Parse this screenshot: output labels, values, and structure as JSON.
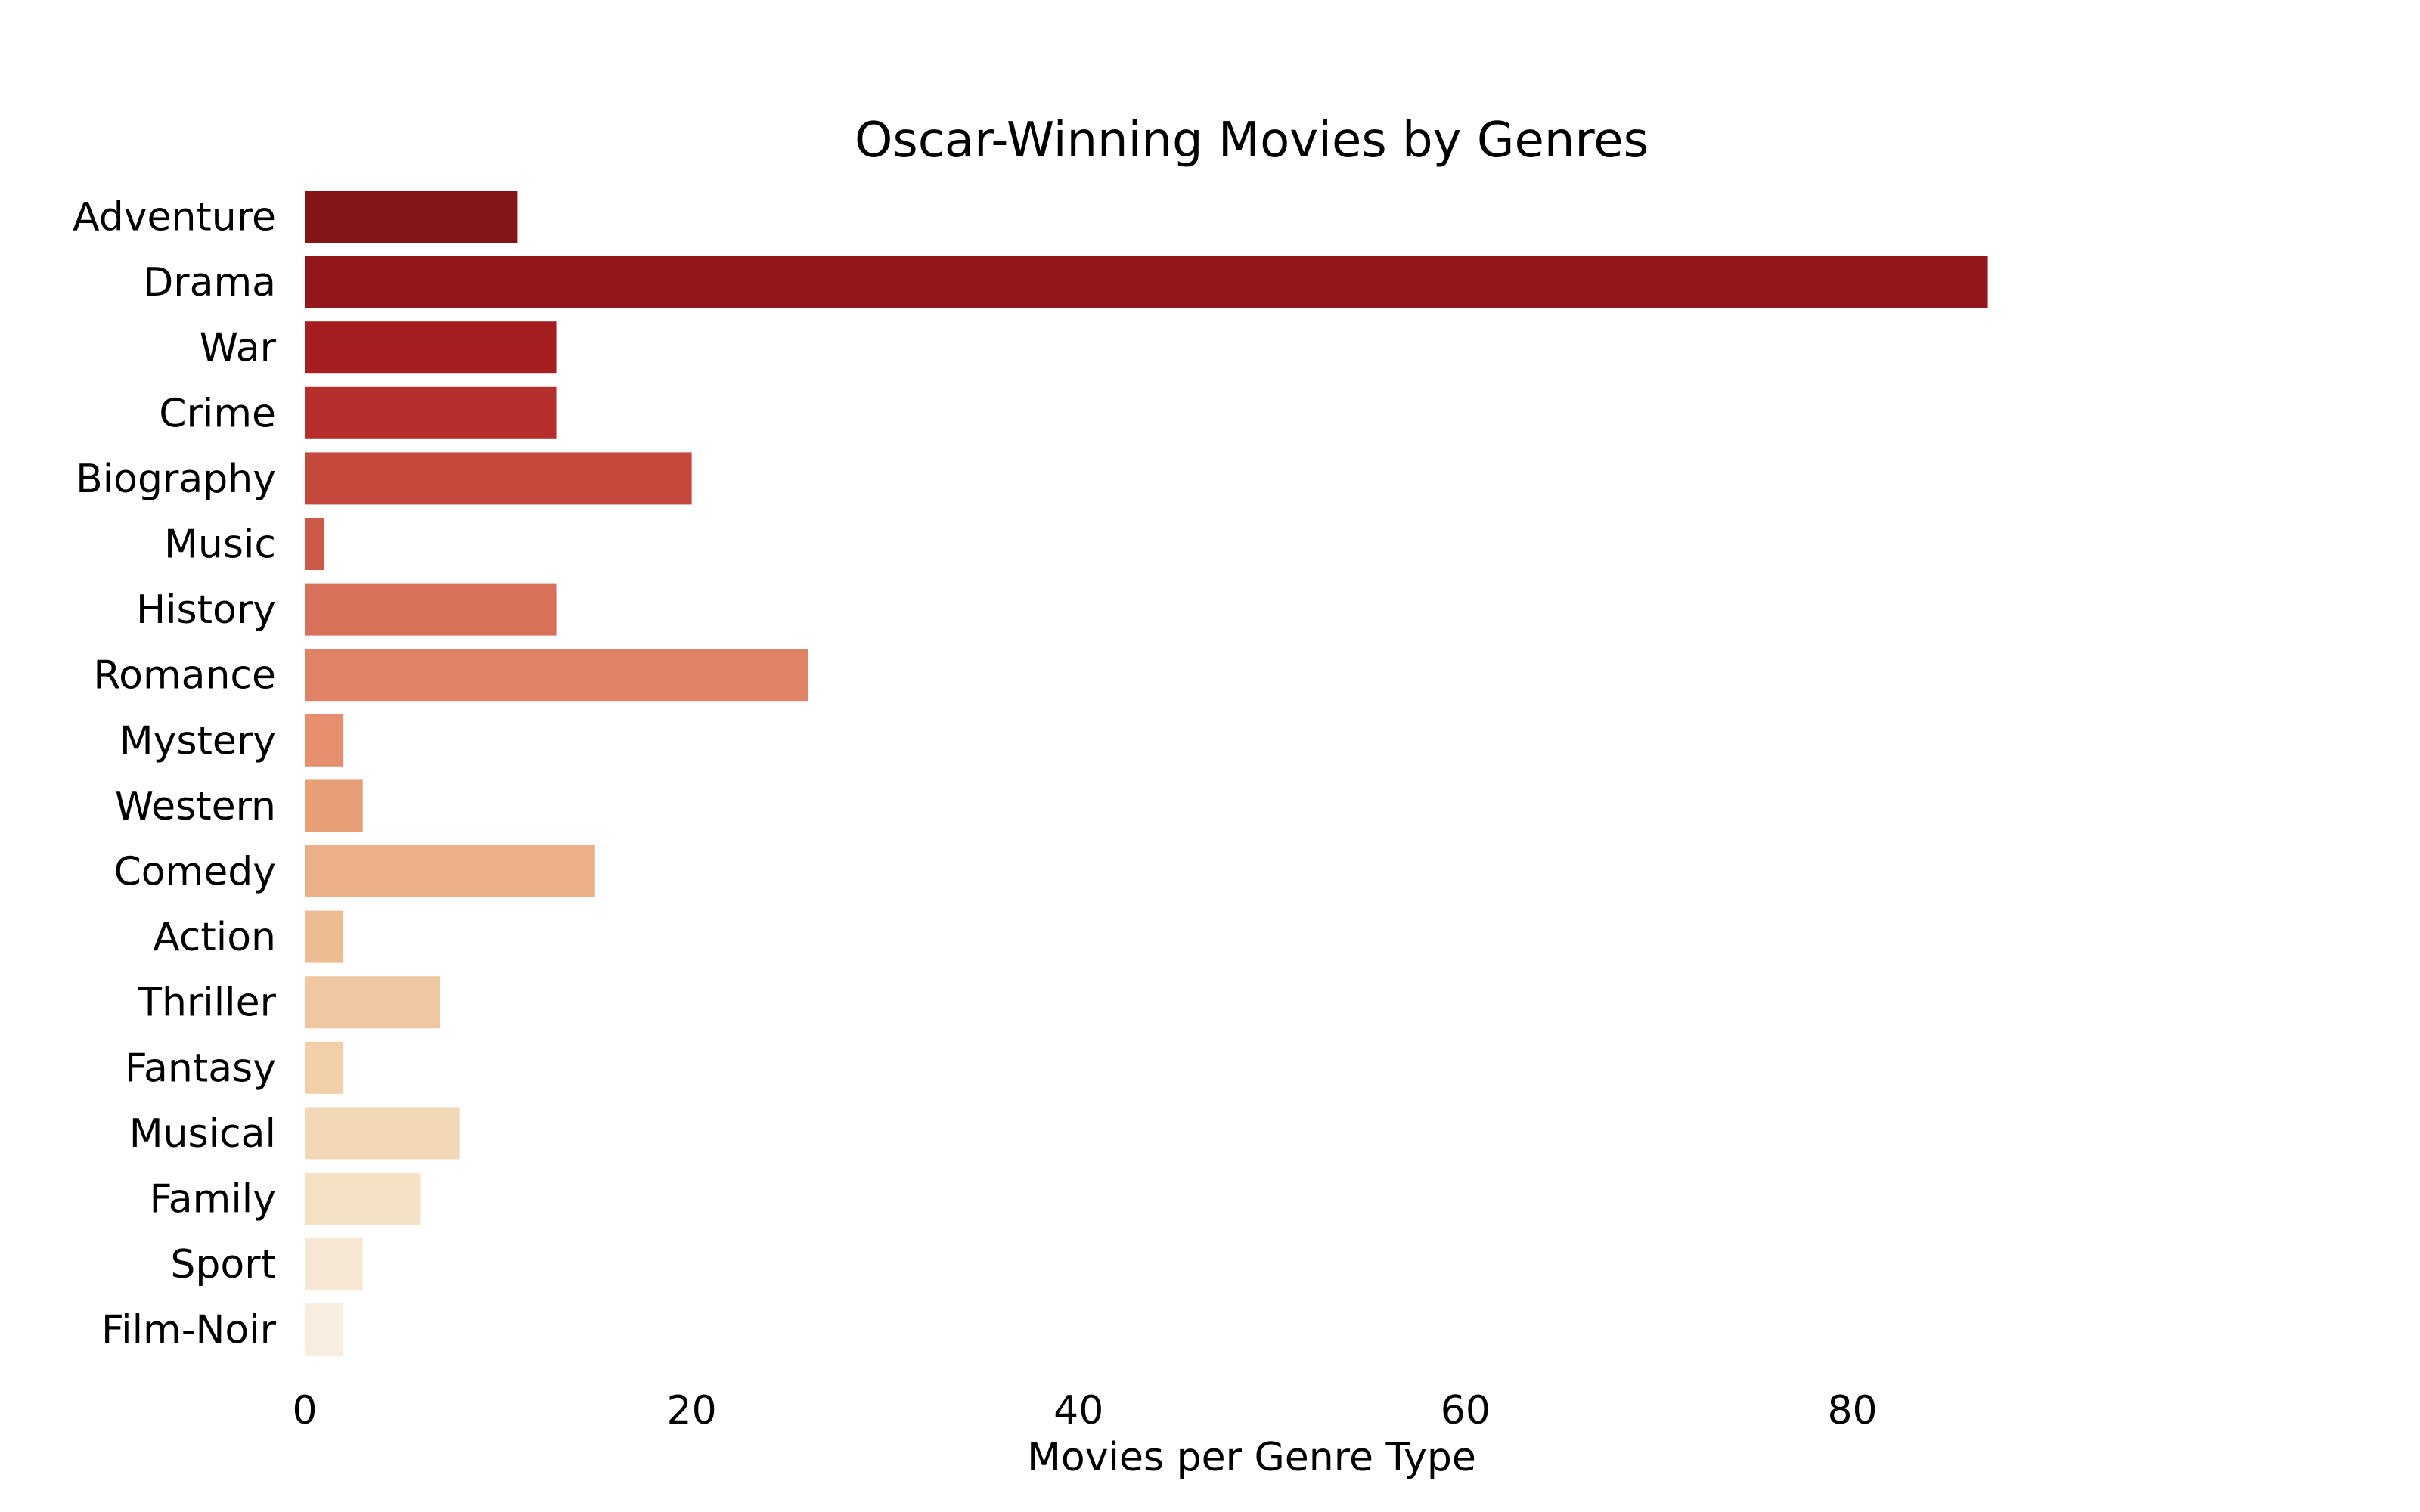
{
  "chart_data": {
    "type": "bar",
    "orientation": "horizontal",
    "title": "Oscar-Winning Movies by Genres",
    "xlabel": "Movies per Genre Type",
    "ylabel": "",
    "xlim": [
      0,
      98
    ],
    "xticks": [
      0,
      20,
      40,
      60,
      80
    ],
    "grid": false,
    "categories": [
      "Adventure",
      "Drama",
      "War",
      "Crime",
      "Biography",
      "Music",
      "History",
      "Romance",
      "Mystery",
      "Western",
      "Comedy",
      "Action",
      "Thriller",
      "Fantasy",
      "Musical",
      "Family",
      "Sport",
      "Film-Noir"
    ],
    "values": [
      11,
      87,
      13,
      13,
      20,
      1,
      13,
      26,
      2,
      3,
      15,
      2,
      7,
      2,
      8,
      6,
      3,
      2
    ],
    "colors": [
      "#841415",
      "#93161a",
      "#a61f20",
      "#b5302c",
      "#c4483b",
      "#cc5a47",
      "#d9705a",
      "#e08266",
      "#e58f6e",
      "#e89f78",
      "#ebb087",
      "#ecbd93",
      "#efc7a1",
      "#f1d0a9",
      "#f2d8b6",
      "#f5e1c4",
      "#f7e8d5",
      "#f9ede0"
    ]
  }
}
